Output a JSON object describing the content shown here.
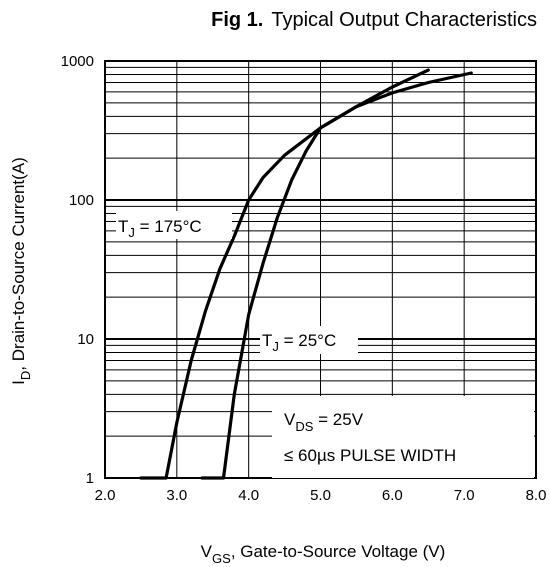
{
  "figure": {
    "fig_label": "Fig 1.",
    "title": "Typical Output Characteristics"
  },
  "chart_data": {
    "type": "line",
    "title": "Fig 1. Typical Output Characteristics",
    "xlabel": {
      "main": "V",
      "sub": "GS",
      "rest": ", Gate-to-Source Voltage (V)"
    },
    "ylabel": {
      "main": "I",
      "sub": "D",
      "rest": ", Drain-to-Source Current(A)"
    },
    "x_scale": "linear",
    "y_scale": "log",
    "xlim": [
      2.0,
      8.0
    ],
    "ylim": [
      1,
      1000
    ],
    "x_ticks": [
      "2.0",
      "3.0",
      "4.0",
      "5.0",
      "6.0",
      "7.0",
      "8.0"
    ],
    "y_ticks": [
      "1",
      "10",
      "100",
      "1000"
    ],
    "grid": true,
    "series": [
      {
        "name": "TJ = 175°C",
        "label": {
          "main": "T",
          "sub": "J",
          "rest": " = 175°C"
        },
        "x": [
          2.5,
          2.85,
          3.0,
          3.2,
          3.4,
          3.6,
          3.8,
          4.0,
          4.2,
          4.5,
          5.0,
          5.5,
          6.0,
          6.5
        ],
        "y": [
          1,
          1,
          2.5,
          7,
          16,
          32,
          55,
          100,
          145,
          210,
          330,
          470,
          650,
          860
        ]
      },
      {
        "name": "TJ = 25°C",
        "label": {
          "main": "T",
          "sub": "J",
          "rest": " = 25°C"
        },
        "x": [
          3.35,
          3.65,
          3.8,
          4.0,
          4.2,
          4.4,
          4.6,
          4.8,
          5.0,
          5.5,
          6.0,
          6.5,
          7.1
        ],
        "y": [
          1,
          1,
          4,
          15,
          35,
          75,
          140,
          225,
          330,
          470,
          590,
          700,
          820
        ]
      }
    ],
    "annotation": {
      "vds": {
        "main": "V",
        "sub": "DS",
        "rest": " = 25V"
      },
      "pulse": "≤ 60µs PULSE WIDTH"
    }
  }
}
